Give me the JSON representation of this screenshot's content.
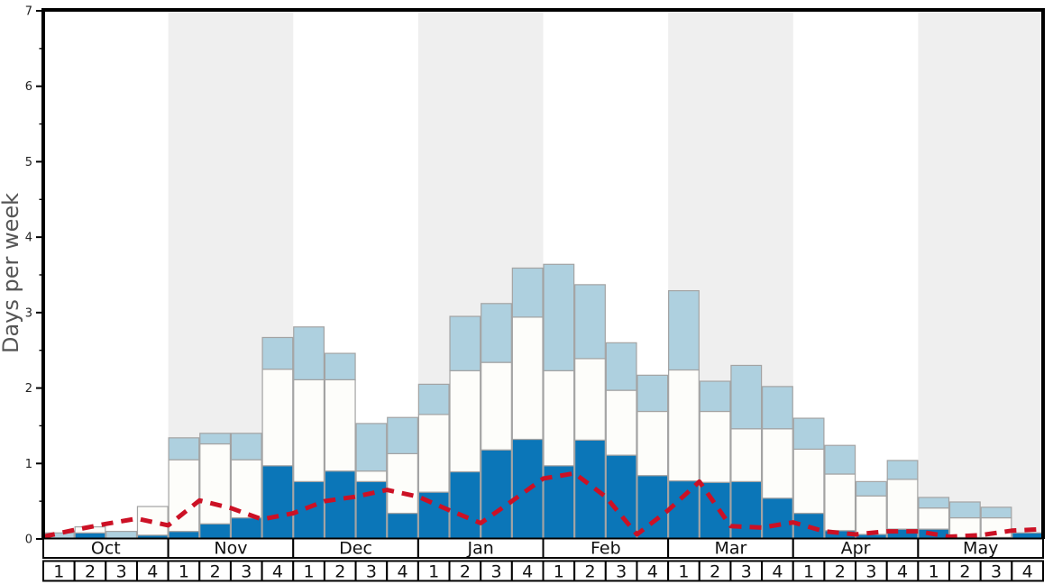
{
  "chart_data": {
    "type": "bar",
    "title": "",
    "ylabel": "Days per week",
    "xlabel": "",
    "ylim": [
      0,
      7
    ],
    "y_major_ticks": [
      0,
      1,
      2,
      3,
      4,
      5,
      6,
      7
    ],
    "y_minor_tick_step": 0.5,
    "grid": false,
    "legend": "none",
    "months": [
      "Oct",
      "Nov",
      "Dec",
      "Jan",
      "Feb",
      "Mar",
      "Apr",
      "May"
    ],
    "week_labels_per_month": [
      "1",
      "2",
      "3",
      "4"
    ],
    "weeks_per_month": 4,
    "shaded_month_indices": [
      1,
      3,
      5,
      7
    ],
    "stack_order": [
      "dark_blue_days",
      "white_days",
      "light_blue_days"
    ],
    "series": [
      {
        "name": "dark_blue_days",
        "color": "#0b76b8",
        "values": [
          0,
          0.08,
          0,
          0.05,
          0.1,
          0.2,
          0.28,
          0.97,
          0.76,
          0.9,
          0.76,
          0.34,
          0.62,
          0.89,
          1.18,
          1.32,
          0.97,
          1.31,
          1.11,
          0.84,
          0.77,
          0.75,
          0.76,
          0.54,
          0.34,
          0.11,
          0.06,
          0.13,
          0.13,
          0.02,
          0.02,
          0.08
        ]
      },
      {
        "name": "white_days",
        "color": "#fdfdfa",
        "values": [
          0,
          0.08,
          0,
          0.38,
          0.95,
          1.06,
          0.77,
          1.28,
          1.35,
          1.21,
          0.14,
          0.79,
          1.03,
          1.34,
          1.16,
          1.62,
          1.26,
          1.08,
          0.86,
          0.85,
          1.47,
          0.94,
          0.7,
          0.92,
          0.85,
          0.75,
          0.51,
          0.66,
          0.28,
          0.26,
          0.26,
          0
        ]
      },
      {
        "name": "light_blue_days",
        "color": "#aed0df",
        "values": [
          0.08,
          0,
          0.1,
          0,
          0.29,
          0.14,
          0.35,
          0.42,
          0.7,
          0.35,
          0.63,
          0.48,
          0.4,
          0.72,
          0.78,
          0.65,
          1.41,
          0.98,
          0.63,
          0.48,
          1.05,
          0.4,
          0.84,
          0.56,
          0.41,
          0.38,
          0.19,
          0.25,
          0.14,
          0.21,
          0.14,
          0
        ]
      }
    ],
    "dashed_line": {
      "name": "red_dashed_average_line",
      "color": "#cc1125",
      "style": "dashed",
      "values_at_week_boundaries": [
        0.03,
        0.12,
        0.2,
        0.27,
        0.18,
        0.51,
        0.41,
        0.26,
        0.34,
        0.5,
        0.56,
        0.65,
        0.56,
        0.38,
        0.21,
        0.5,
        0.8,
        0.87,
        0.56,
        0.06,
        0.38,
        0.76,
        0.17,
        0.15,
        0.22,
        0.1,
        0.06,
        0.1,
        0.1,
        0.03,
        0.05,
        0.11,
        0.13
      ]
    },
    "colors": {
      "month_band": "#efefef",
      "bar_border": "#a3a3a3",
      "frame": "#000000",
      "ylabel_text": "#555555",
      "tick_label_text": "#222222",
      "cell_text": "#111111",
      "cell_background": "#ffffff"
    }
  }
}
